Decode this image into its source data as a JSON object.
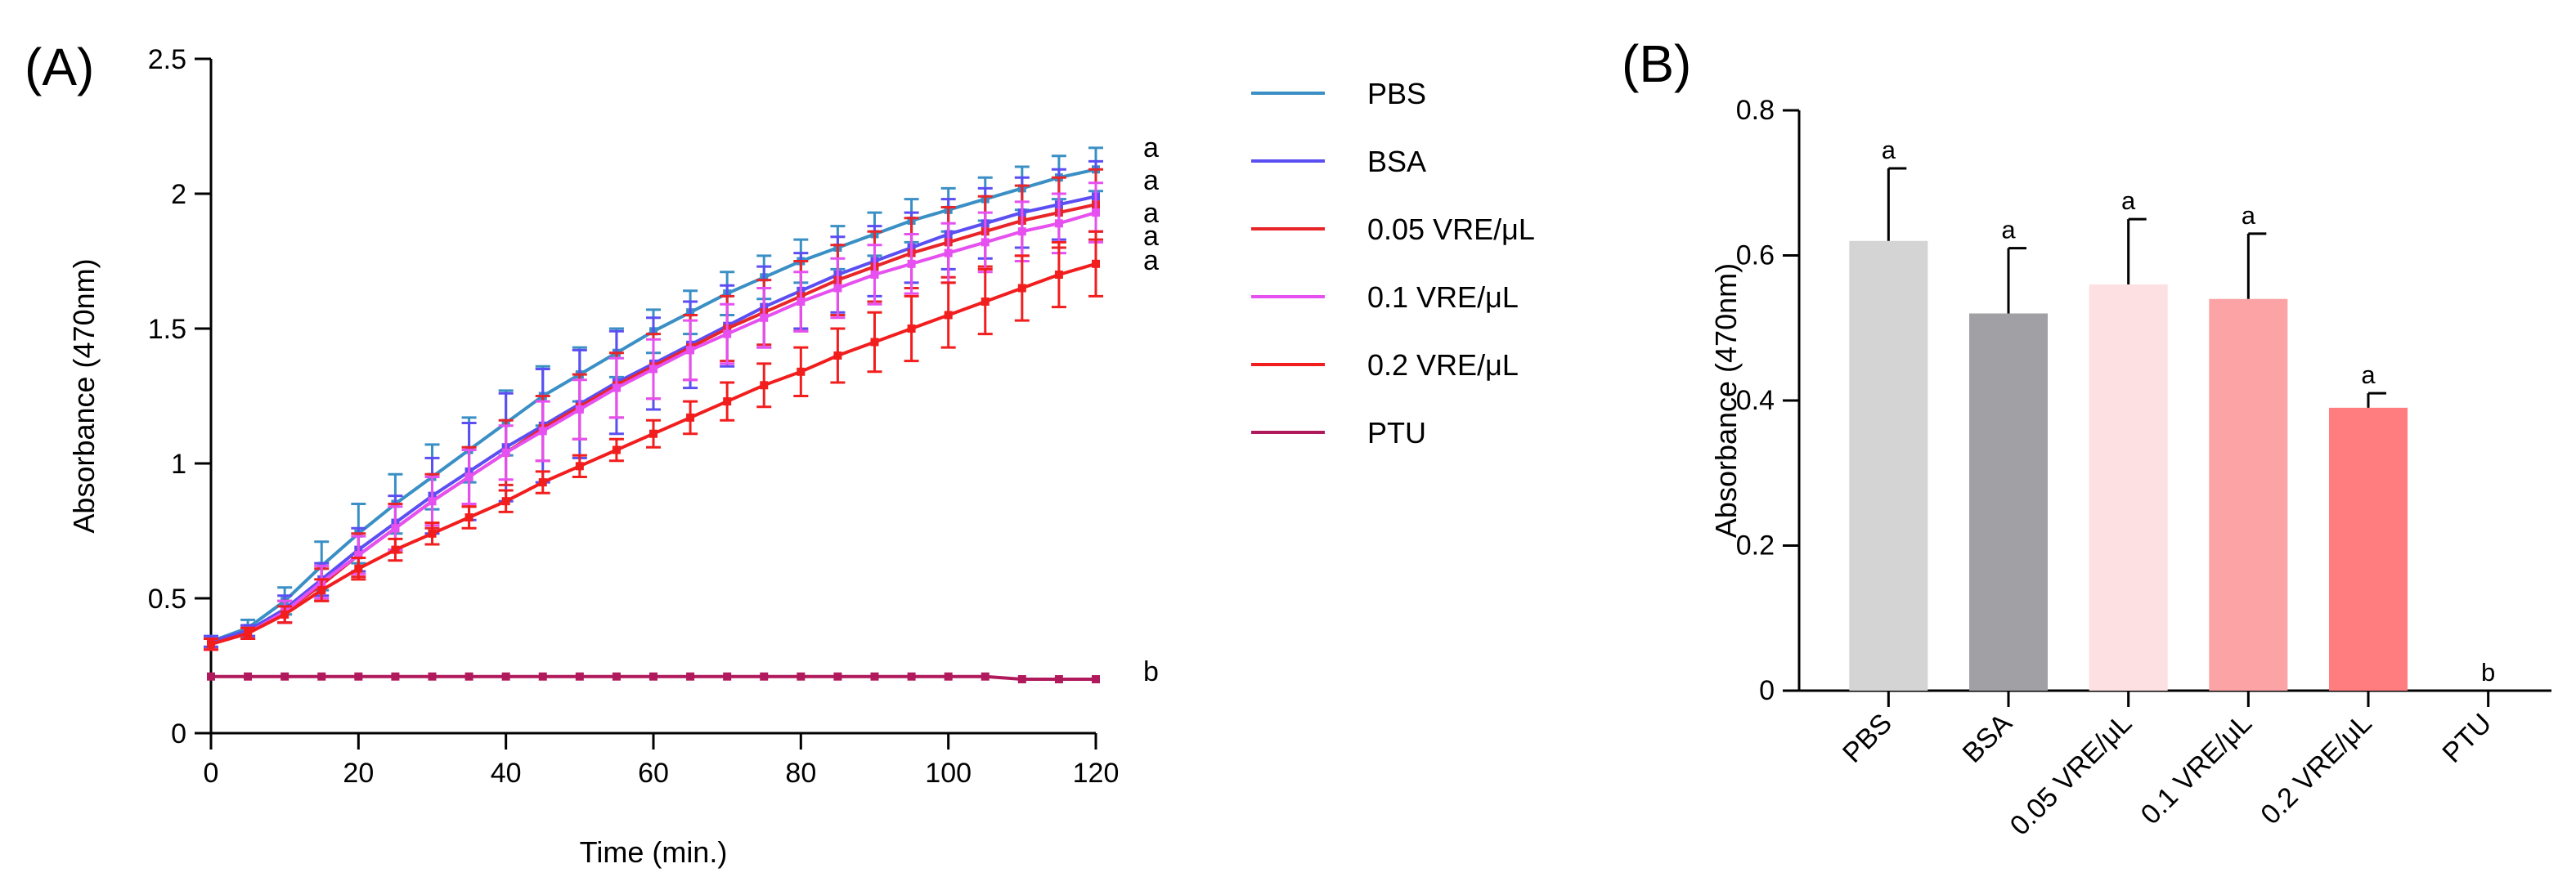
{
  "figure": {
    "label_a": "(A)",
    "label_b": "(B)"
  },
  "chart_data": [
    {
      "type": "line",
      "panel": "A",
      "xlabel": "Time (min.)",
      "ylabel": "Absorbance (470nm)",
      "xlim": [
        0,
        120
      ],
      "ylim": [
        0,
        2.5
      ],
      "xticks": [
        0,
        20,
        40,
        60,
        80,
        100,
        120
      ],
      "yticks": [
        0,
        0.5,
        1,
        1.5,
        2,
        2.5
      ],
      "ytick_labels": [
        "0",
        "0.5",
        "1",
        "1.5",
        "2",
        "2.5"
      ],
      "x": [
        0,
        5,
        10,
        15,
        20,
        25,
        30,
        35,
        40,
        45,
        50,
        55,
        60,
        65,
        70,
        75,
        80,
        85,
        90,
        95,
        100,
        105,
        110,
        115,
        120
      ],
      "legend_position": "right",
      "series": [
        {
          "name": "PBS",
          "color": "#3a8fc5",
          "sig": "a",
          "values": [
            0.34,
            0.39,
            0.49,
            0.62,
            0.74,
            0.85,
            0.95,
            1.05,
            1.15,
            1.25,
            1.33,
            1.41,
            1.49,
            1.56,
            1.63,
            1.69,
            1.75,
            1.8,
            1.85,
            1.9,
            1.94,
            1.98,
            2.02,
            2.06,
            2.09
          ],
          "errors": [
            0.02,
            0.03,
            0.05,
            0.09,
            0.11,
            0.11,
            0.12,
            0.12,
            0.12,
            0.11,
            0.1,
            0.09,
            0.08,
            0.08,
            0.08,
            0.08,
            0.08,
            0.08,
            0.08,
            0.08,
            0.08,
            0.08,
            0.08,
            0.08,
            0.08
          ]
        },
        {
          "name": "BSA",
          "color": "#5b4ef2",
          "sig": "a",
          "values": [
            0.34,
            0.38,
            0.46,
            0.57,
            0.68,
            0.78,
            0.88,
            0.97,
            1.06,
            1.14,
            1.22,
            1.3,
            1.37,
            1.44,
            1.51,
            1.58,
            1.64,
            1.7,
            1.75,
            1.8,
            1.85,
            1.89,
            1.93,
            1.96,
            1.99
          ],
          "errors": [
            0.02,
            0.02,
            0.05,
            0.06,
            0.08,
            0.1,
            0.14,
            0.18,
            0.2,
            0.21,
            0.2,
            0.19,
            0.17,
            0.16,
            0.15,
            0.15,
            0.14,
            0.14,
            0.13,
            0.13,
            0.13,
            0.13,
            0.13,
            0.13,
            0.13
          ]
        },
        {
          "name": "0.05 VRE/μL",
          "color": "#e8262a",
          "sig": "a",
          "values": [
            0.33,
            0.37,
            0.45,
            0.55,
            0.66,
            0.76,
            0.86,
            0.95,
            1.04,
            1.13,
            1.21,
            1.29,
            1.36,
            1.43,
            1.5,
            1.56,
            1.62,
            1.68,
            1.73,
            1.78,
            1.82,
            1.86,
            1.9,
            1.93,
            1.96
          ],
          "errors": [
            0.02,
            0.02,
            0.04,
            0.06,
            0.08,
            0.09,
            0.1,
            0.11,
            0.12,
            0.12,
            0.12,
            0.12,
            0.12,
            0.12,
            0.12,
            0.12,
            0.13,
            0.13,
            0.13,
            0.13,
            0.13,
            0.13,
            0.13,
            0.13,
            0.13
          ]
        },
        {
          "name": "0.1 VRE/μL",
          "color": "#e650f0",
          "sig": "a",
          "values": [
            0.33,
            0.37,
            0.45,
            0.56,
            0.66,
            0.76,
            0.86,
            0.95,
            1.04,
            1.12,
            1.2,
            1.28,
            1.35,
            1.42,
            1.48,
            1.54,
            1.6,
            1.65,
            1.7,
            1.74,
            1.78,
            1.82,
            1.86,
            1.89,
            1.93
          ],
          "errors": [
            0.02,
            0.02,
            0.04,
            0.06,
            0.07,
            0.08,
            0.09,
            0.1,
            0.1,
            0.11,
            0.11,
            0.11,
            0.11,
            0.11,
            0.11,
            0.11,
            0.11,
            0.11,
            0.11,
            0.11,
            0.11,
            0.11,
            0.11,
            0.11,
            0.11
          ]
        },
        {
          "name": "0.2 VRE/μL",
          "color": "#f21d1d",
          "sig": "a",
          "values": [
            0.33,
            0.37,
            0.44,
            0.53,
            0.61,
            0.68,
            0.74,
            0.8,
            0.86,
            0.93,
            0.99,
            1.05,
            1.11,
            1.17,
            1.23,
            1.29,
            1.34,
            1.4,
            1.45,
            1.5,
            1.55,
            1.6,
            1.65,
            1.7,
            1.74
          ],
          "errors": [
            0.02,
            0.02,
            0.03,
            0.04,
            0.04,
            0.04,
            0.04,
            0.04,
            0.04,
            0.04,
            0.04,
            0.04,
            0.05,
            0.06,
            0.07,
            0.08,
            0.09,
            0.1,
            0.11,
            0.12,
            0.12,
            0.12,
            0.12,
            0.12,
            0.12
          ]
        },
        {
          "name": "PTU",
          "color": "#b01a5c",
          "sig": "b",
          "values": [
            0.21,
            0.21,
            0.21,
            0.21,
            0.21,
            0.21,
            0.21,
            0.21,
            0.21,
            0.21,
            0.21,
            0.21,
            0.21,
            0.21,
            0.21,
            0.21,
            0.21,
            0.21,
            0.21,
            0.21,
            0.21,
            0.21,
            0.2,
            0.2,
            0.2
          ],
          "errors": [
            0.005,
            0.005,
            0.005,
            0.005,
            0.005,
            0.005,
            0.005,
            0.005,
            0.005,
            0.005,
            0.005,
            0.005,
            0.005,
            0.005,
            0.005,
            0.005,
            0.005,
            0.005,
            0.005,
            0.005,
            0.005,
            0.005,
            0.005,
            0.005,
            0.005
          ]
        }
      ]
    },
    {
      "type": "bar",
      "panel": "B",
      "ylabel": "Absorbance (470nm)",
      "xlabel": "",
      "ylim": [
        0,
        0.8
      ],
      "yticks": [
        0,
        0.2,
        0.4,
        0.6,
        0.8
      ],
      "ytick_labels": [
        "0",
        "0.2",
        "0.4",
        "0.6",
        "0.8"
      ],
      "categories": [
        "PBS",
        "BSA",
        "0.05 VRE/μL",
        "0.1 VRE/μL",
        "0.2 VRE/μL",
        "PTU"
      ],
      "values": [
        0.62,
        0.52,
        0.56,
        0.54,
        0.39,
        0.0
      ],
      "errors": [
        0.1,
        0.09,
        0.09,
        0.09,
        0.02,
        0.0
      ],
      "colors": [
        "#d4d4d4",
        "#a1a1a5",
        "#fde0e2",
        "#fca3a5",
        "#ff7c7f",
        "#ffffff"
      ],
      "sig": [
        "a",
        "a",
        "a",
        "a",
        "a",
        "b"
      ]
    }
  ]
}
